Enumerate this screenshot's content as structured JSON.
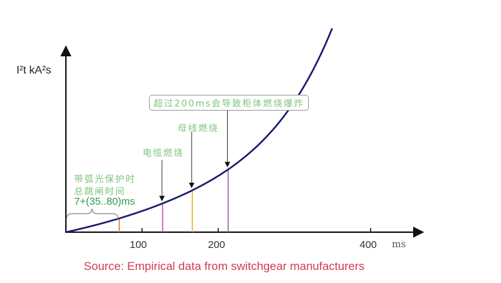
{
  "chart_data": {
    "type": "line",
    "title": "",
    "ylabel": "I²t kA²s",
    "xlabel": "ms",
    "x_unit": "ms",
    "x_ticks": [
      100,
      200,
      400
    ],
    "x_tick_labels": [
      "100",
      "200",
      "400"
    ],
    "xlim": [
      0,
      465
    ],
    "y_ticks": [],
    "grid": false,
    "legend": "none",
    "curve": {
      "shape": "exponential rising",
      "color": "#1a1a6e"
    },
    "markers": [
      {
        "x": 70,
        "color": "#e07a3a",
        "label": ""
      },
      {
        "x": 127,
        "color": "#cc55bb",
        "label": "电缆燃烧"
      },
      {
        "x": 166,
        "color": "#f0b030",
        "label": "母线燃烧"
      },
      {
        "x": 213,
        "color": "#a060a8",
        "label": "超过200ms会导致柜体燃烧爆炸"
      }
    ],
    "annotations": {
      "arc_protection_line1": "带弧光保护时",
      "arc_protection_line2": "总跳闸时间",
      "arc_protection_time": "7+(35..80)ms"
    },
    "source": "Source: Empirical data from switchgear manufacturers",
    "colors": {
      "annotation": "#7cc47a",
      "time_text": "#2e9a4f",
      "source": "#d33a52"
    }
  }
}
